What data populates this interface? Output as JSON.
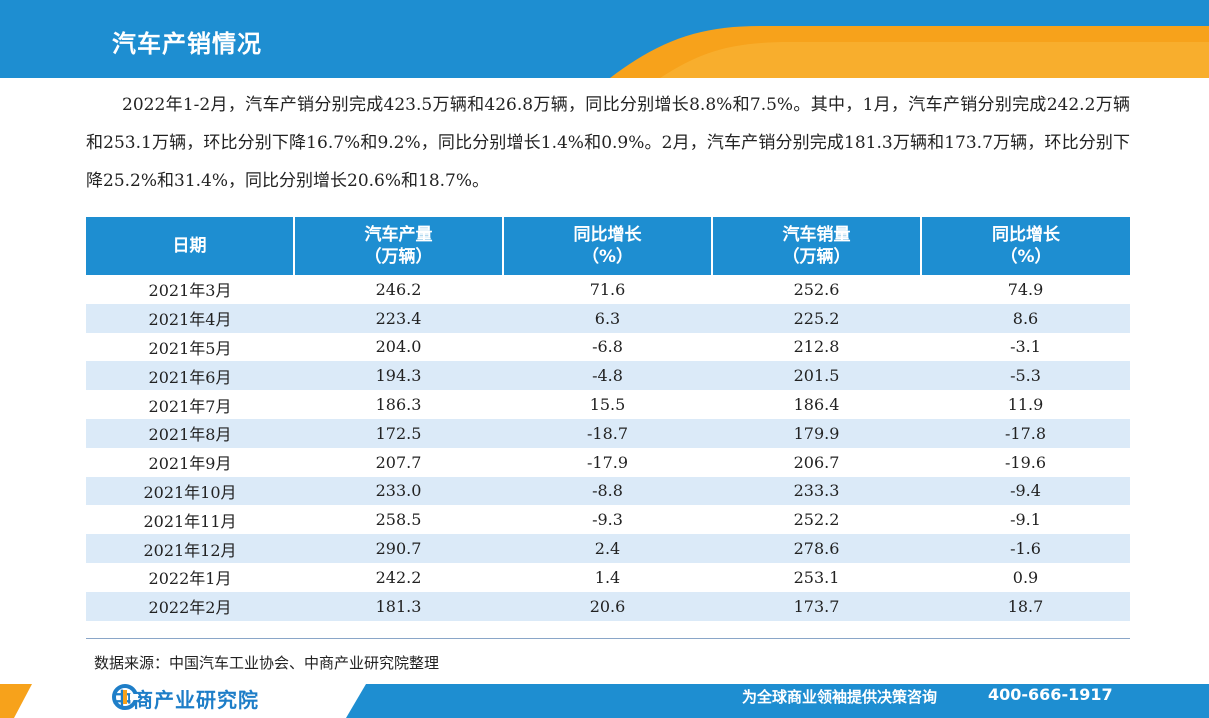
{
  "header": {
    "title": "汽车产销情况"
  },
  "summary": {
    "text": "2022年1-2月，汽车产销分别完成423.5万辆和426.8万辆，同比分别增长8.8%和7.5%。其中，1月，汽车产销分别完成242.2万辆和253.1万辆，环比分别下降16.7%和9.2%，同比分别增长1.4%和0.9%。2月，汽车产销分别完成181.3万辆和173.7万辆，环比分别下降25.2%和31.4%，同比分别增长20.6%和18.7%。"
  },
  "table": {
    "headers": [
      {
        "line1": "日期",
        "line2": ""
      },
      {
        "line1": "汽车产量",
        "line2": "（万辆）"
      },
      {
        "line1": "同比增长",
        "line2": "（%）"
      },
      {
        "line1": "汽车销量",
        "line2": "（万辆）"
      },
      {
        "line1": "同比增长",
        "line2": "（%）"
      }
    ],
    "rows": [
      [
        "2021年3月",
        "246.2",
        "71.6",
        "252.6",
        "74.9"
      ],
      [
        "2021年4月",
        "223.4",
        "6.3",
        "225.2",
        "8.6"
      ],
      [
        "2021年5月",
        "204.0",
        "-6.8",
        "212.8",
        "-3.1"
      ],
      [
        "2021年6月",
        "194.3",
        "-4.8",
        "201.5",
        "-5.3"
      ],
      [
        "2021年7月",
        "186.3",
        "15.5",
        "186.4",
        "11.9"
      ],
      [
        "2021年8月",
        "172.5",
        "-18.7",
        "179.9",
        "-17.8"
      ],
      [
        "2021年9月",
        "207.7",
        "-17.9",
        "206.7",
        "-19.6"
      ],
      [
        "2021年10月",
        "233.0",
        "-8.8",
        "233.3",
        "-9.4"
      ],
      [
        "2021年11月",
        "258.5",
        "-9.3",
        "252.2",
        "-9.1"
      ],
      [
        "2021年12月",
        "290.7",
        "2.4",
        "278.6",
        "-1.6"
      ],
      [
        "2022年1月",
        "242.2",
        "1.4",
        "253.1",
        "0.9"
      ],
      [
        "2022年2月",
        "181.3",
        "20.6",
        "173.7",
        "18.7"
      ]
    ]
  },
  "source": {
    "text": "数据来源：中国汽车工业协会、中商产业研究院整理"
  },
  "footer": {
    "logo_text": "中商产业研究院",
    "logo_icon": "company-logo-icon",
    "slogan": "为全球商业领袖提供决策咨询",
    "phone": "400-666-1917"
  },
  "colors": {
    "primary_blue": "#1e8ed1",
    "accent_orange": "#f7a21b",
    "row_alt": "#dbeaf8"
  }
}
